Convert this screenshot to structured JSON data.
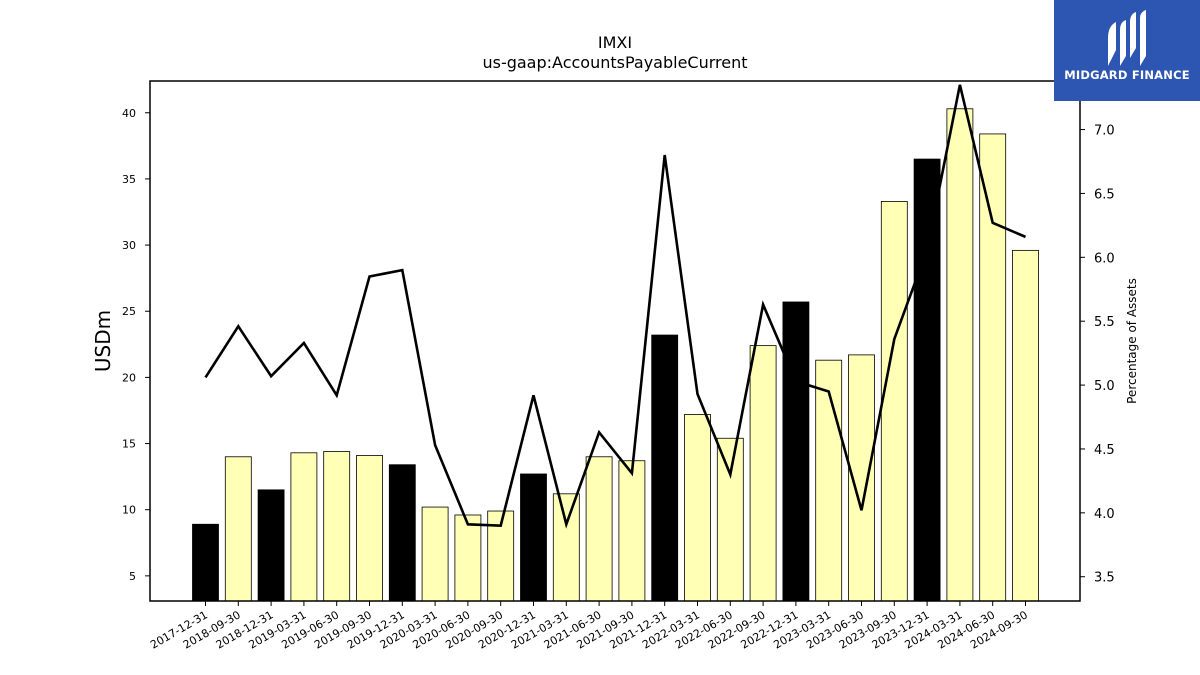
{
  "logo": {
    "text": "MIDGARD FINANCE",
    "icon": "midgard-logo-icon",
    "background": "#2d56b3"
  },
  "chart_data": {
    "type": "bar",
    "title": "IMXI",
    "subtitle": "us-gaap:AccountsPayableCurrent",
    "ylabel": "USDm",
    "y2label": "Percentage of Assets",
    "categories": [
      "2017-12-31",
      "2018-09-30",
      "2018-12-31",
      "2019-03-31",
      "2019-06-30",
      "2019-09-30",
      "2019-12-31",
      "2020-03-31",
      "2020-06-30",
      "2020-09-30",
      "2020-12-31",
      "2021-03-31",
      "2021-06-30",
      "2021-09-30",
      "2021-12-31",
      "2022-03-31",
      "2022-06-30",
      "2022-09-30",
      "2022-12-31",
      "2023-03-31",
      "2023-06-30",
      "2023-09-30",
      "2023-12-31",
      "2024-03-31",
      "2024-06-30",
      "2024-09-30"
    ],
    "series": [
      {
        "type": "bar",
        "axis": "left",
        "values": [
          8.9,
          14.0,
          11.5,
          14.3,
          14.4,
          14.1,
          13.4,
          10.2,
          9.6,
          9.9,
          12.7,
          11.2,
          14.0,
          13.7,
          23.2,
          17.2,
          15.4,
          22.4,
          25.7,
          21.3,
          21.7,
          33.3,
          36.5,
          40.3,
          38.4,
          29.6
        ],
        "year_end": [
          true,
          false,
          true,
          false,
          false,
          false,
          true,
          false,
          false,
          false,
          true,
          false,
          false,
          false,
          true,
          false,
          false,
          false,
          true,
          false,
          false,
          false,
          true,
          false,
          false,
          false
        ]
      },
      {
        "type": "line",
        "axis": "right",
        "values": [
          5.06,
          5.46,
          5.07,
          5.33,
          4.92,
          5.85,
          5.9,
          4.53,
          3.91,
          3.9,
          4.92,
          3.91,
          4.63,
          4.31,
          6.8,
          4.93,
          4.3,
          5.63,
          5.03,
          4.95,
          4.02,
          5.36,
          6.06,
          7.35,
          6.27,
          6.16
        ]
      }
    ],
    "ylim": [
      3.1,
      42.4
    ],
    "yticks": [
      5,
      10,
      15,
      20,
      25,
      30,
      35,
      40
    ],
    "y2lim": [
      3.31,
      7.38
    ],
    "y2ticks": [
      3.5,
      4.0,
      4.5,
      5.0,
      5.5,
      6.0,
      6.5,
      7.0
    ],
    "colors": {
      "year_end_bar": "#000000",
      "quarter_bar": "#ffffb5",
      "line": "#000000",
      "bar_edge": "#000000"
    },
    "grid": false,
    "legend": "none"
  }
}
